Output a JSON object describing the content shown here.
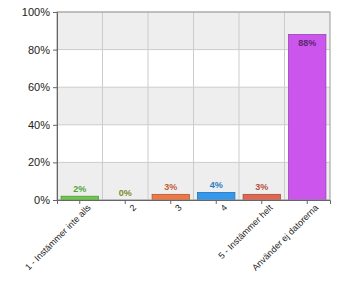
{
  "chart_data": {
    "type": "bar",
    "categories": [
      "1 - Instämmer inte alls",
      "2",
      "3",
      "4",
      "5 - Instämmer helt",
      "Använder ej datorerna"
    ],
    "values": [
      2,
      0,
      3,
      4,
      3,
      88
    ],
    "value_labels": [
      "2%",
      "0%",
      "3%",
      "4%",
      "3%",
      "88%"
    ],
    "colors": [
      "#66cc44",
      "#99aa33",
      "#ee7744",
      "#3399ee",
      "#e06650",
      "#cc55ee"
    ],
    "ylim": [
      0,
      100
    ],
    "yticks": [
      {
        "value": 0,
        "label": "0%"
      },
      {
        "value": 20,
        "label": "20%"
      },
      {
        "value": 40,
        "label": "40%"
      },
      {
        "value": 60,
        "label": "60%"
      },
      {
        "value": 80,
        "label": "80%"
      },
      {
        "value": 100,
        "label": "100%"
      }
    ],
    "grid": true,
    "data_labels": true
  }
}
